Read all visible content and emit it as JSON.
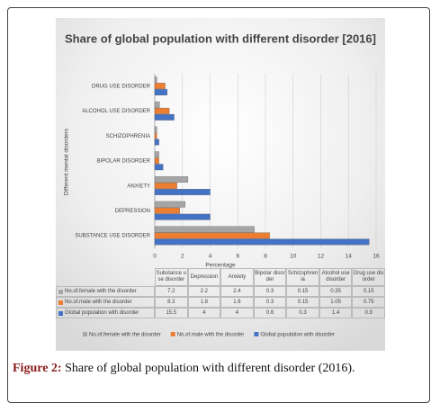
{
  "chart_data": {
    "type": "hbar",
    "title": "Share of global population with different disorder [2016]",
    "x_label": "Percentage",
    "y_label": "Different mental disorders",
    "categories": [
      "DRUG USE DISORDER",
      "ALCOHOL USE DISORDER",
      "SCHIZOPHRENIA",
      "BIPOLAR DISORDER",
      "ANXIETY",
      "DEPRESSION",
      "SUBSTANCE USE DISORDER"
    ],
    "table_columns": [
      "Drug use disorder",
      "Alcohol use disorder",
      "Schizophrenia",
      "Bipolar disorder",
      "Anxiety",
      "Depression",
      "Substance use disorder"
    ],
    "series": [
      {
        "name": "No.of.female with the disorder",
        "color": "#a5a5a5",
        "values": [
          0.15,
          0.35,
          0.15,
          0.3,
          2.4,
          2.2,
          7.2
        ]
      },
      {
        "name": "No.of.male with the disorder",
        "color": "#ed7d31",
        "values": [
          0.75,
          1.05,
          0.15,
          0.3,
          1.6,
          1.8,
          8.3
        ]
      },
      {
        "name": "Global population with disorder",
        "color": "#4472c4",
        "values": [
          0.9,
          1.4,
          0.3,
          0.6,
          4,
          4,
          15.5
        ]
      }
    ],
    "xlim": [
      0,
      16
    ],
    "xticks": [
      0,
      2,
      4,
      6,
      8,
      10,
      12,
      14,
      16
    ],
    "grid": true
  },
  "caption": {
    "label": "Figure 2:",
    "text": "Share of global population with different disorder (2016)."
  }
}
